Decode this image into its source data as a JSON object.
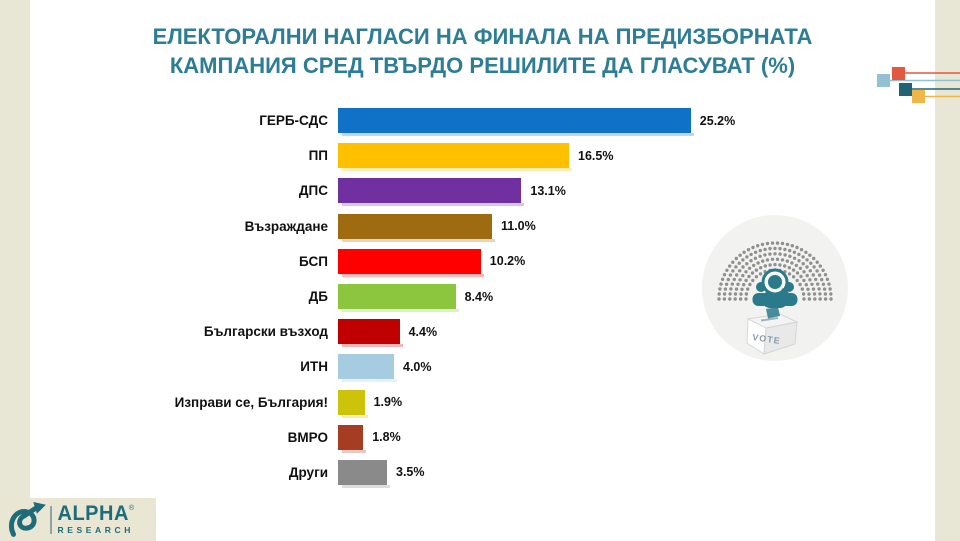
{
  "title": {
    "line1": "ЕЛЕКТОРАЛНИ НАГЛАСИ НА ФИНАЛА НА ПРЕДИЗБОРНАТА",
    "line2": "КАМПАНИЯ СРЕД ТВЪРДО РЕШИЛИТЕ ДА ГЛАСУВАТ (%)"
  },
  "chart_data": {
    "type": "bar",
    "orientation": "horizontal",
    "title": "ЕЛЕКТОРАЛНИ НАГЛАСИ НА ФИНАЛА НА ПРЕДИЗБОРНАТА КАМПАНИЯ СРЕД ТВЪРДО РЕШИЛИТЕ ДА ГЛАСУВАТ (%)",
    "categories": [
      "ГЕРБ-СДС",
      "ПП",
      "ДПС",
      "Възраждане",
      "БСП",
      "ДБ",
      "Български възход",
      "ИТН",
      "Изправи се, България!",
      "ВМРО",
      "Други"
    ],
    "values": [
      25.2,
      16.5,
      13.1,
      11.0,
      10.2,
      8.4,
      4.4,
      4.0,
      1.9,
      1.8,
      3.5
    ],
    "unit": "%",
    "bar_colors": [
      "#0f72c6",
      "#ffc000",
      "#7030a0",
      "#9e6b10",
      "#ff0000",
      "#8cc63e",
      "#c00000",
      "#a5cce0",
      "#ccc30a",
      "#a53d23",
      "#8a8a8a"
    ],
    "xlim": [
      0,
      28
    ],
    "grid": false,
    "axis_labels": false,
    "data_labels": "outside-end"
  },
  "graphic": {
    "vote_label": "VOTE"
  },
  "logo": {
    "brand": "ALPHA",
    "reg": "®",
    "sub": "RESEARCH"
  },
  "colors": {
    "title_text": "#2e7d96",
    "frame_beige": "#e8e7d5",
    "seat_dots": "#909090",
    "icon_teal": "#2b7a8c",
    "decor_squares": [
      "#e2593f",
      "#92c1d6",
      "#1f6374",
      "#f0b64a"
    ]
  }
}
